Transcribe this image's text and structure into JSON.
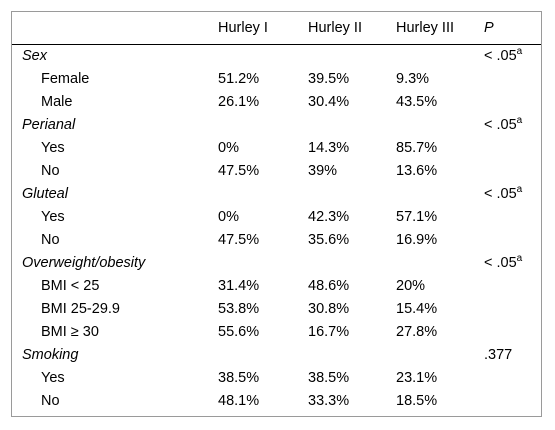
{
  "header": {
    "col0": "",
    "col1": "Hurley I",
    "col2": "Hurley II",
    "col3": "Hurley III",
    "col4": "P"
  },
  "groups": [
    {
      "label": "Sex",
      "p": "< .05",
      "p_sup": "a",
      "rows": [
        {
          "label": "Female",
          "v1": "51.2%",
          "v2": "39.5%",
          "v3": "9.3%"
        },
        {
          "label": "Male",
          "v1": "26.1%",
          "v2": "30.4%",
          "v3": "43.5%"
        }
      ]
    },
    {
      "label": "Perianal",
      "p": "< .05",
      "p_sup": "a",
      "rows": [
        {
          "label": "Yes",
          "v1": "0%",
          "v2": "14.3%",
          "v3": "85.7%"
        },
        {
          "label": "No",
          "v1": "47.5%",
          "v2": "39%",
          "v3": "13.6%"
        }
      ]
    },
    {
      "label": "Gluteal",
      "p": "< .05",
      "p_sup": "a",
      "rows": [
        {
          "label": "Yes",
          "v1": "0%",
          "v2": "42.3%",
          "v3": "57.1%"
        },
        {
          "label": "No",
          "v1": "47.5%",
          "v2": "35.6%",
          "v3": "16.9%"
        }
      ]
    },
    {
      "label": "Overweight/obesity",
      "p": "< .05",
      "p_sup": "a",
      "rows": [
        {
          "label": "BMI < 25",
          "v1": "31.4%",
          "v2": "48.6%",
          "v3": "20%"
        },
        {
          "label": "BMI 25-29.9",
          "v1": "53.8%",
          "v2": "30.8%",
          "v3": "15.4%"
        },
        {
          "label": "BMI ≥ 30",
          "v1": "55.6%",
          "v2": "16.7%",
          "v3": "27.8%"
        }
      ]
    },
    {
      "label": "Smoking",
      "p": ".377",
      "p_sup": "",
      "rows": [
        {
          "label": "Yes",
          "v1": "38.5%",
          "v2": "38.5%",
          "v3": "23.1%"
        },
        {
          "label": "No",
          "v1": "48.1%",
          "v2": "33.3%",
          "v3": "18.5%"
        }
      ]
    }
  ]
}
